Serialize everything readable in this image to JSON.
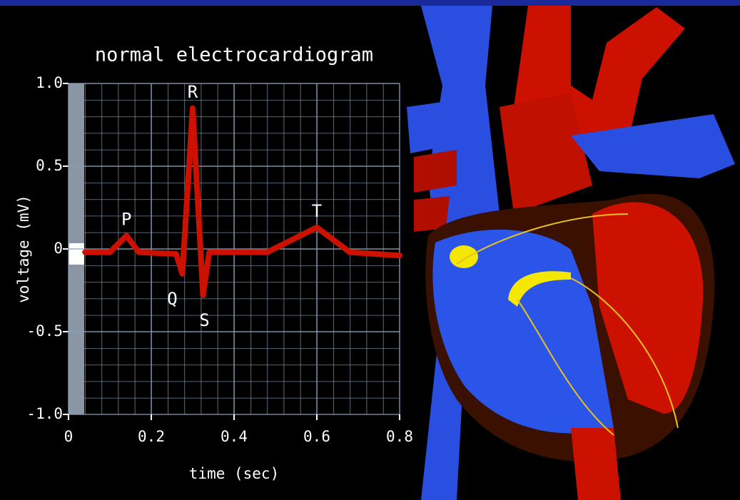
{
  "chart_data": {
    "type": "line",
    "title": "normal electrocardiogram",
    "x_label": "time (sec)",
    "y_label": "voltage (mV)",
    "x": [
      0.04,
      0.1,
      0.14,
      0.17,
      0.26,
      0.275,
      0.3,
      0.325,
      0.34,
      0.48,
      0.6,
      0.68,
      0.8
    ],
    "values": [
      -0.02,
      -0.02,
      0.08,
      -0.02,
      -0.03,
      -0.15,
      0.85,
      -0.28,
      -0.02,
      -0.02,
      0.13,
      -0.02,
      -0.04
    ],
    "point_labels": [
      null,
      null,
      "P",
      null,
      null,
      "Q",
      "R",
      "S",
      null,
      null,
      "T",
      null,
      null
    ],
    "color": "#cc1100",
    "xlim": [
      0,
      0.8
    ],
    "xticks": [
      0,
      0.2,
      0.4,
      0.6,
      0.8
    ],
    "ylim": [
      -1,
      1
    ],
    "yticks": [
      {
        "value": -1,
        "label": "-1.0"
      },
      -0.5,
      0,
      0.5,
      {
        "value": 1,
        "label": "1.0"
      }
    ],
    "grid": true
  }
}
